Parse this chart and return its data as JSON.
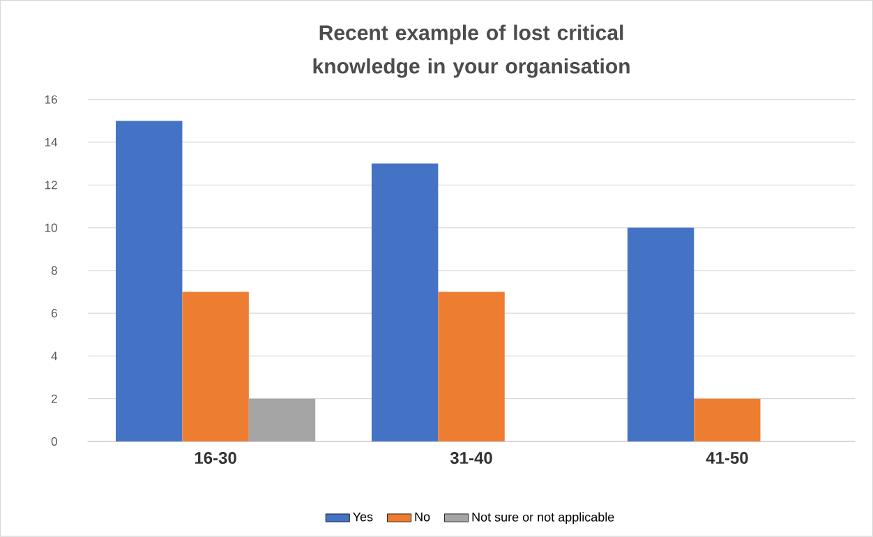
{
  "chart_data": {
    "type": "bar",
    "title": "Recent example of lost critical knowledge in your organisation",
    "categories": [
      "16-30",
      "31-40",
      "41-50"
    ],
    "series": [
      {
        "name": "Yes",
        "color": "#4472c4",
        "values": [
          15,
          13,
          10
        ]
      },
      {
        "name": "No",
        "color": "#ed7d31",
        "values": [
          7,
          7,
          2
        ]
      },
      {
        "name": "Not sure or not applicable",
        "color": "#a5a5a5",
        "values": [
          2,
          0,
          0
        ]
      }
    ],
    "ylim": [
      0,
      16
    ],
    "yticks": [
      0,
      2,
      4,
      6,
      8,
      10,
      12,
      14,
      16
    ],
    "grid": "y",
    "legend": "bottom"
  }
}
